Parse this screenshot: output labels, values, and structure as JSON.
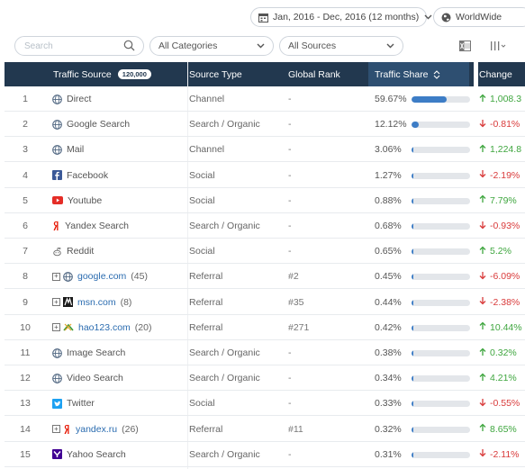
{
  "header": {
    "date_range": "Jan, 2016 - Dec, 2016 (12 months)",
    "country": "WorldWide"
  },
  "filters": {
    "search_placeholder": "Search",
    "category": "All Categories",
    "source": "All Sources"
  },
  "table": {
    "columns": {
      "source": "Traffic Source",
      "source_count": "120,000",
      "type": "Source Type",
      "rank": "Global Rank",
      "share": "Traffic Share",
      "change": "Change"
    },
    "rows": [
      {
        "num": "1",
        "name": "Direct",
        "icon": "globe-icon",
        "link": false,
        "expandable": false,
        "count": "",
        "type": "Channel",
        "rank": "-",
        "share": "59.67%",
        "share_value": 59.67,
        "change": "1,008.3",
        "dir": "up"
      },
      {
        "num": "2",
        "name": "Google Search",
        "icon": "globe-icon",
        "link": false,
        "expandable": false,
        "count": "",
        "type": "Search / Organic",
        "rank": "-",
        "share": "12.12%",
        "share_value": 12.12,
        "change": "-0.81%",
        "dir": "down"
      },
      {
        "num": "3",
        "name": "Mail",
        "icon": "globe-icon",
        "link": false,
        "expandable": false,
        "count": "",
        "type": "Channel",
        "rank": "-",
        "share": "3.06%",
        "share_value": 3.06,
        "change": "1,224.8",
        "dir": "up"
      },
      {
        "num": "4",
        "name": "Facebook",
        "icon": "facebook-icon",
        "link": false,
        "expandable": false,
        "count": "",
        "type": "Social",
        "rank": "-",
        "share": "1.27%",
        "share_value": 1.27,
        "change": "-2.19%",
        "dir": "down"
      },
      {
        "num": "5",
        "name": "Youtube",
        "icon": "youtube-icon",
        "link": false,
        "expandable": false,
        "count": "",
        "type": "Social",
        "rank": "-",
        "share": "0.88%",
        "share_value": 0.88,
        "change": "7.79%",
        "dir": "up"
      },
      {
        "num": "6",
        "name": "Yandex Search",
        "icon": "yandex-icon",
        "link": false,
        "expandable": false,
        "count": "",
        "type": "Search / Organic",
        "rank": "-",
        "share": "0.68%",
        "share_value": 0.68,
        "change": "-0.93%",
        "dir": "down"
      },
      {
        "num": "7",
        "name": "Reddit",
        "icon": "reddit-icon",
        "link": false,
        "expandable": false,
        "count": "",
        "type": "Social",
        "rank": "-",
        "share": "0.65%",
        "share_value": 0.65,
        "change": "5.2%",
        "dir": "up"
      },
      {
        "num": "8",
        "name": "google.com",
        "icon": "globe-icon",
        "link": true,
        "expandable": true,
        "count": "(45)",
        "type": "Referral",
        "rank": "#2",
        "share": "0.45%",
        "share_value": 0.45,
        "change": "-6.09%",
        "dir": "down"
      },
      {
        "num": "9",
        "name": "msn.com",
        "icon": "msn-icon",
        "link": true,
        "expandable": true,
        "count": "(8)",
        "type": "Referral",
        "rank": "#35",
        "share": "0.44%",
        "share_value": 0.44,
        "change": "-2.38%",
        "dir": "down"
      },
      {
        "num": "10",
        "name": "hao123.com",
        "icon": "hao123-icon",
        "link": true,
        "expandable": true,
        "count": "(20)",
        "type": "Referral",
        "rank": "#271",
        "share": "0.42%",
        "share_value": 0.42,
        "change": "10.44%",
        "dir": "up"
      },
      {
        "num": "11",
        "name": "Image Search",
        "icon": "globe-icon",
        "link": false,
        "expandable": false,
        "count": "",
        "type": "Search / Organic",
        "rank": "-",
        "share": "0.38%",
        "share_value": 0.38,
        "change": "0.32%",
        "dir": "up"
      },
      {
        "num": "12",
        "name": "Video Search",
        "icon": "globe-icon",
        "link": false,
        "expandable": false,
        "count": "",
        "type": "Search / Organic",
        "rank": "-",
        "share": "0.34%",
        "share_value": 0.34,
        "change": "4.21%",
        "dir": "up"
      },
      {
        "num": "13",
        "name": "Twitter",
        "icon": "twitter-icon",
        "link": false,
        "expandable": false,
        "count": "",
        "type": "Social",
        "rank": "-",
        "share": "0.33%",
        "share_value": 0.33,
        "change": "-0.55%",
        "dir": "down"
      },
      {
        "num": "14",
        "name": "yandex.ru",
        "icon": "yandex-icon",
        "link": true,
        "expandable": true,
        "count": "(26)",
        "type": "Referral",
        "rank": "#11",
        "share": "0.32%",
        "share_value": 0.32,
        "change": "8.65%",
        "dir": "up"
      },
      {
        "num": "15",
        "name": "Yahoo Search",
        "icon": "yahoo-icon",
        "link": false,
        "expandable": false,
        "count": "",
        "type": "Search / Organic",
        "rank": "-",
        "share": "0.31%",
        "share_value": 0.31,
        "change": "-2.11%",
        "dir": "down"
      }
    ]
  },
  "colors": {
    "header_bg": "#22384f",
    "bar_fill": "#3d7dc6",
    "up": "#3fa63f",
    "down": "#d93b3b",
    "link": "#2b6cb0"
  }
}
